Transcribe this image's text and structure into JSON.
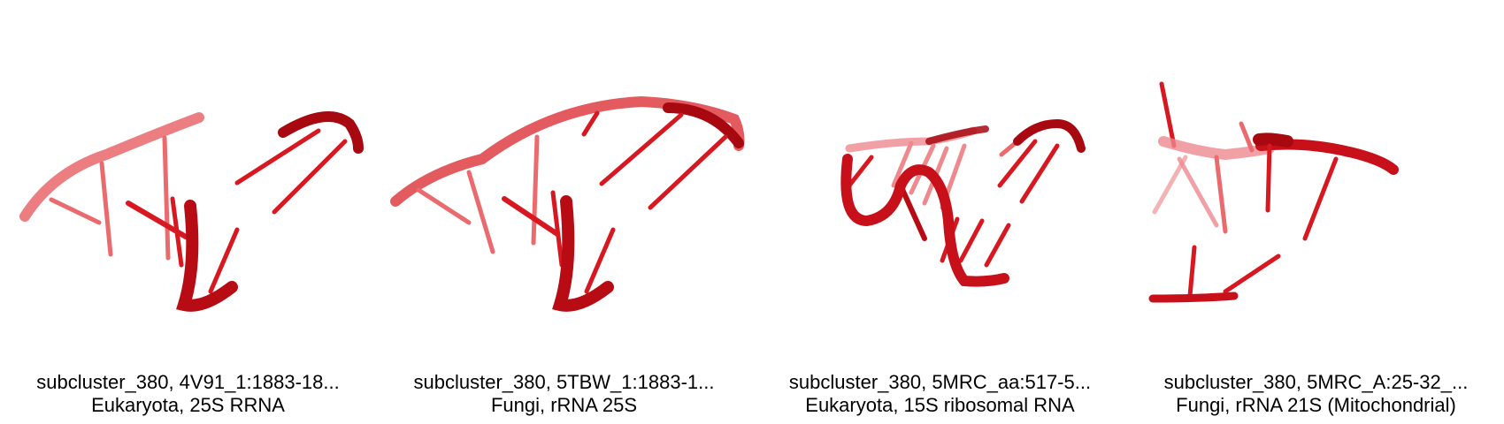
{
  "panels": [
    {
      "title": "subcluster_380, 4V91_1:1883-18...",
      "subtitle": "Eukaryota, 25S RRNA"
    },
    {
      "title": "subcluster_380, 5TBW_1:1883-1...",
      "subtitle": "Fungi, rRNA 25S"
    },
    {
      "title": "subcluster_380, 5MRC_aa:517-5...",
      "subtitle": "Eukaryota, 15S ribosomal RNA"
    },
    {
      "title": "subcluster_380, 5MRC_A:25-32_...",
      "subtitle": "Fungi, rRNA 21S (Mitochondrial)"
    }
  ],
  "colors": {
    "backbone": "#c8101a",
    "backbone_light": "#e85a5f",
    "base": "#d81820",
    "base_light": "#ea6a6e",
    "text": "#000000"
  }
}
